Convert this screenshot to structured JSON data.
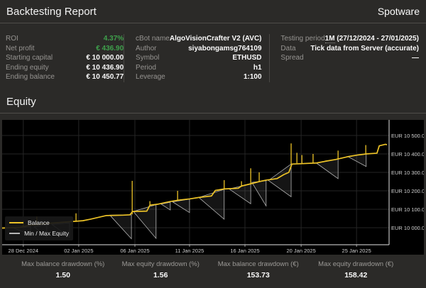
{
  "header": {
    "title": "Backtesting Report",
    "brand": "Spotware"
  },
  "summary": {
    "left": [
      {
        "label": "ROI",
        "value": "4.37%",
        "green": true
      },
      {
        "label": "Net profit",
        "value": "€ 436.90",
        "green": true
      },
      {
        "label": "Starting capital",
        "value": "€ 10 000.00"
      },
      {
        "label": "Ending equity",
        "value": "€ 10 436.90"
      },
      {
        "label": "Ending balance",
        "value": "€ 10 450.77"
      }
    ],
    "middle": [
      {
        "label": "cBot name",
        "value": "AlgoVisionCrafter V2 (AVC)"
      },
      {
        "label": "Author",
        "value": "siyabongamsg764109"
      },
      {
        "label": "Symbol",
        "value": "ETHUSD"
      },
      {
        "label": "Period",
        "value": "h1"
      },
      {
        "label": "Leverage",
        "value": "1:100"
      }
    ],
    "right": [
      {
        "label": "Testing period",
        "value": "1M (27/12/2024 - 27/01/2025)",
        "underlined_prefix": "1M"
      },
      {
        "label": "Data",
        "value": "Tick data from Server (accurate)"
      },
      {
        "label": "Spread",
        "value": "—"
      }
    ]
  },
  "section": {
    "equity_title": "Equity"
  },
  "chart_data": {
    "type": "line",
    "title": "Equity",
    "xlabel": "",
    "ylabel": "EUR",
    "grid": true,
    "legend_position": "bottom-left",
    "legend": [
      "Balance",
      "Min / Max Equity"
    ],
    "x_ticks": [
      {
        "f": 0.055,
        "label": "28 Dec 2024"
      },
      {
        "f": 0.199,
        "label": "02 Jan 2025"
      },
      {
        "f": 0.345,
        "label": "06 Jan 2025"
      },
      {
        "f": 0.487,
        "label": "11 Jan 2025"
      },
      {
        "f": 0.631,
        "label": "16 Jan 2025"
      },
      {
        "f": 0.777,
        "label": "20 Jan 2025"
      },
      {
        "f": 0.921,
        "label": "25 Jan 2025"
      }
    ],
    "y_ticks": [
      {
        "v": 10000,
        "label": "EUR 10 000.00"
      },
      {
        "v": 10100,
        "label": "EUR 10 100.00"
      },
      {
        "v": 10200,
        "label": "EUR 10 200.00"
      },
      {
        "v": 10300,
        "label": "EUR 10 300.00"
      },
      {
        "v": 10400,
        "label": "EUR 10 400.00"
      },
      {
        "v": 10500,
        "label": "EUR 10 500.00"
      }
    ],
    "ylim": [
      9908,
      10584
    ],
    "series": [
      {
        "name": "Balance",
        "color": "#edc327",
        "points": [
          [
            0.0,
            9998
          ],
          [
            0.046,
            10002
          ],
          [
            0.068,
            10012
          ],
          [
            0.113,
            10022
          ],
          [
            0.16,
            10030
          ],
          [
            0.21,
            10038
          ],
          [
            0.229,
            10046
          ],
          [
            0.271,
            10066
          ],
          [
            0.314,
            10068
          ],
          [
            0.332,
            10070
          ],
          [
            0.339,
            10088
          ],
          [
            0.376,
            10090
          ],
          [
            0.384,
            10122
          ],
          [
            0.406,
            10128
          ],
          [
            0.437,
            10142
          ],
          [
            0.461,
            10150
          ],
          [
            0.487,
            10156
          ],
          [
            0.511,
            10164
          ],
          [
            0.544,
            10172
          ],
          [
            0.554,
            10202
          ],
          [
            0.577,
            10210
          ],
          [
            0.614,
            10214
          ],
          [
            0.622,
            10226
          ],
          [
            0.646,
            10238
          ],
          [
            0.668,
            10250
          ],
          [
            0.686,
            10258
          ],
          [
            0.714,
            10266
          ],
          [
            0.732,
            10288
          ],
          [
            0.745,
            10300
          ],
          [
            0.753,
            10345
          ],
          [
            0.817,
            10351
          ],
          [
            0.839,
            10360
          ],
          [
            0.867,
            10370
          ],
          [
            0.898,
            10385
          ],
          [
            0.923,
            10394
          ],
          [
            0.946,
            10400
          ],
          [
            0.974,
            10404
          ],
          [
            0.98,
            10444
          ],
          [
            0.996,
            10452
          ],
          [
            1.0,
            10450
          ]
        ],
        "spikes": [
          [
            0.055,
            10002,
            10036
          ],
          [
            0.09,
            10014,
            10060
          ],
          [
            0.192,
            10032,
            10078
          ],
          [
            0.338,
            10072,
            10254
          ],
          [
            0.384,
            10124,
            10144
          ],
          [
            0.456,
            10148,
            10200
          ],
          [
            0.577,
            10210,
            10258
          ],
          [
            0.622,
            10222,
            10252
          ],
          [
            0.646,
            10238,
            10322
          ],
          [
            0.668,
            10250,
            10300
          ],
          [
            0.751,
            10345,
            10457
          ],
          [
            0.766,
            10350,
            10406
          ],
          [
            0.779,
            10350,
            10394
          ],
          [
            0.808,
            10351,
            10400
          ],
          [
            0.873,
            10372,
            10418
          ],
          [
            0.945,
            10400,
            10448
          ]
        ]
      },
      {
        "name": "Min / Max Equity",
        "color": "#b5b5b5",
        "drawdowns": [
          [
            0.028,
            10000,
            0.074,
            9962,
            10005
          ],
          [
            0.083,
            10005,
            0.116,
            9950,
            10018
          ],
          [
            0.129,
            10018,
            0.175,
            9948,
            10026
          ],
          [
            0.28,
            10068,
            0.336,
            9940,
            10070
          ],
          [
            0.341,
            10088,
            0.4,
            9942,
            10125
          ],
          [
            0.413,
            10128,
            0.437,
            10096,
            10138
          ],
          [
            0.443,
            10140,
            0.487,
            10082,
            10155
          ],
          [
            0.511,
            10164,
            0.577,
            10046,
            10208
          ],
          [
            0.59,
            10210,
            0.646,
            10130,
            10238
          ],
          [
            0.649,
            10246,
            0.686,
            10118,
            10255
          ],
          [
            0.692,
            10256,
            0.751,
            10168,
            10345
          ],
          [
            0.817,
            10350,
            0.873,
            10266,
            10372
          ],
          [
            0.898,
            10386,
            0.946,
            10332,
            10400
          ]
        ]
      }
    ]
  },
  "footer_stats": [
    {
      "label": "Max balance drawdown (%)",
      "value": "1.50"
    },
    {
      "label": "Max equity drawdown (%)",
      "value": "1.56"
    },
    {
      "label": "Max balance drawdown (€)",
      "value": "153.73"
    },
    {
      "label": "Max equity drawdown (€)",
      "value": "158.42"
    }
  ],
  "colors": {
    "background": "#2b2a28",
    "chart_background": "#000000",
    "positive_green": "#3fa14c",
    "balance_yellow": "#edc327",
    "equity_gray": "#b5b5b5",
    "divider": "#4f4d4a"
  }
}
